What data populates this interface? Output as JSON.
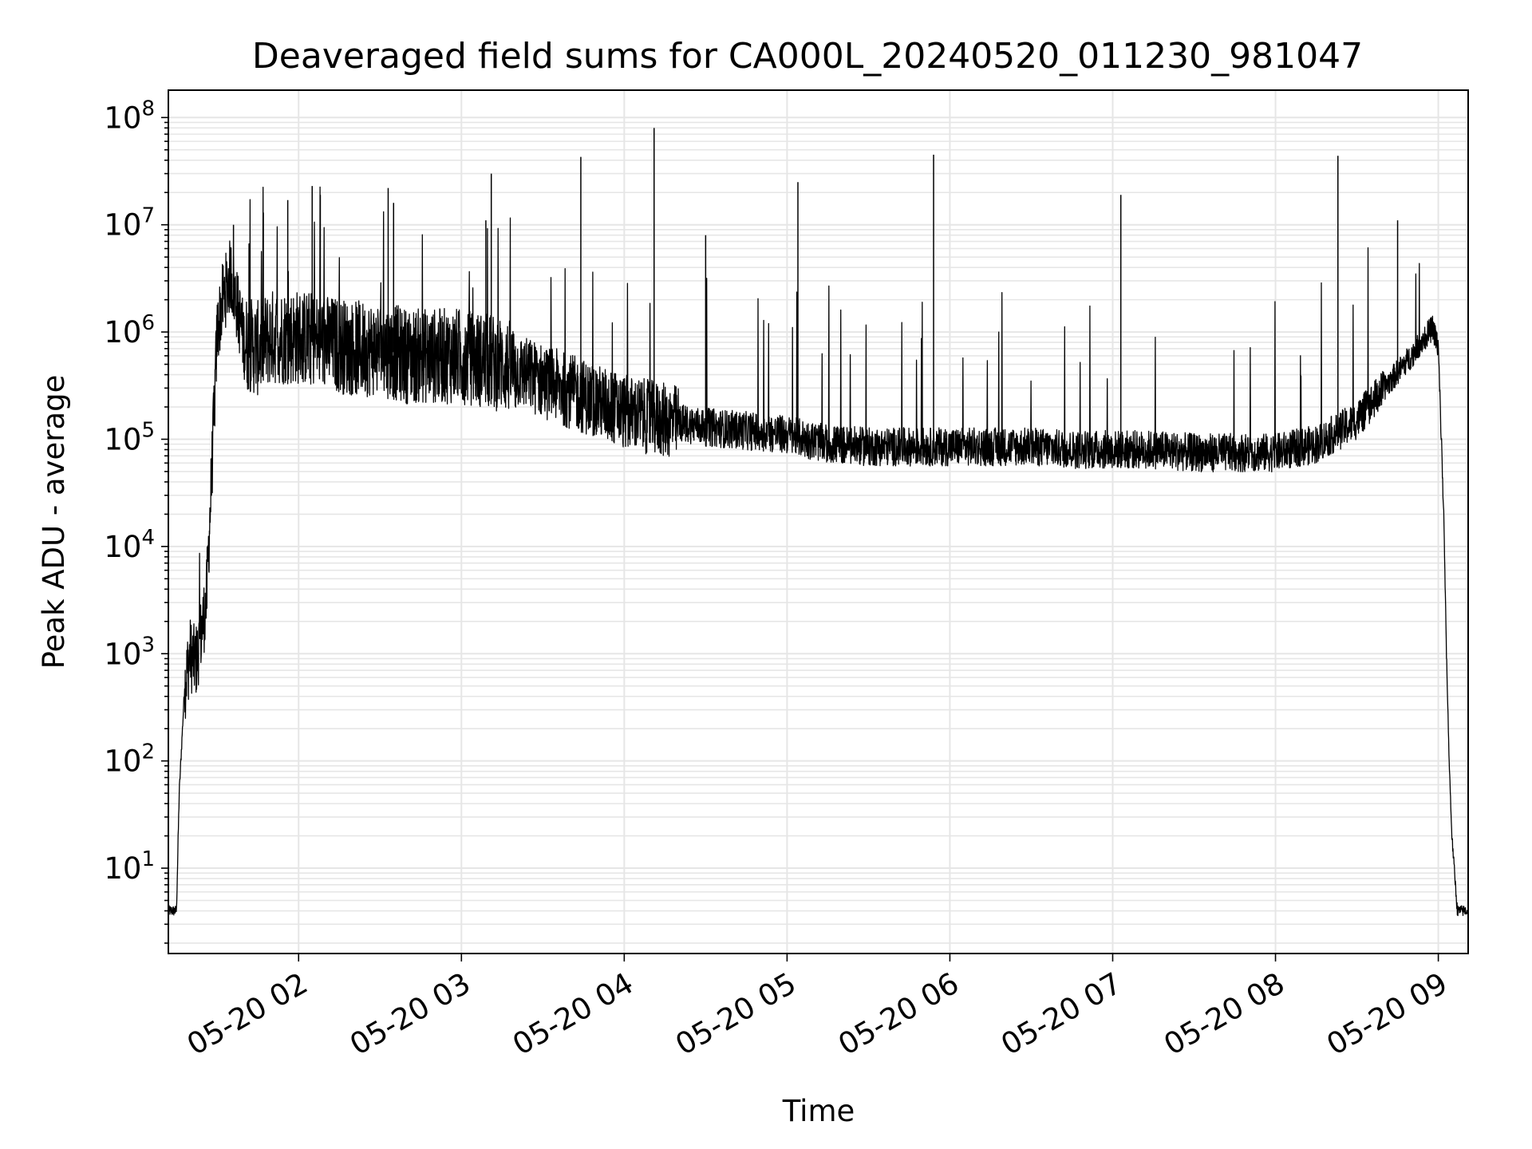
{
  "chart_data": {
    "type": "line",
    "title": "Deaveraged field sums for CA000L_20240520_011230_981047",
    "xlabel": "Time",
    "ylabel": "Peak ADU - average",
    "y_scale": "log",
    "ylim": [
      1.6,
      180000000
    ],
    "xlim": [
      "2024-05-20 01:12",
      "2024-05-20 09:11"
    ],
    "x_ticks": [
      "05-20 02",
      "05-20 03",
      "05-20 04",
      "05-20 05",
      "05-20 06",
      "05-20 07",
      "05-20 08",
      "05-20 09"
    ],
    "x_tick_times": [
      "2024-05-20 02:00",
      "2024-05-20 03:00",
      "2024-05-20 04:00",
      "2024-05-20 05:00",
      "2024-05-20 06:00",
      "2024-05-20 07:00",
      "2024-05-20 08:00",
      "2024-05-20 09:00"
    ],
    "y_ticks": [
      10,
      100,
      1000,
      10000,
      100000,
      1000000,
      10000000,
      100000000
    ],
    "y_tick_labels": [
      {
        "base": "10",
        "exp": "1"
      },
      {
        "base": "10",
        "exp": "2"
      },
      {
        "base": "10",
        "exp": "3"
      },
      {
        "base": "10",
        "exp": "4"
      },
      {
        "base": "10",
        "exp": "5"
      },
      {
        "base": "10",
        "exp": "6"
      },
      {
        "base": "10",
        "exp": "7"
      },
      {
        "base": "10",
        "exp": "8"
      }
    ],
    "grid": true,
    "grid_minor": true,
    "line_color": "#000000",
    "grid_color": "#e6e6e6",
    "series": [
      {
        "x": [
          "2024-05-20 01:12",
          "2024-05-20 01:14",
          "2024-05-20 01:15",
          "2024-05-20 01:16",
          "2024-05-20 01:18",
          "2024-05-20 01:20",
          "2024-05-20 01:22",
          "2024-05-20 01:24",
          "2024-05-20 01:26",
          "2024-05-20 01:28",
          "2024-05-20 01:30",
          "2024-05-20 01:32",
          "2024-05-20 01:35",
          "2024-05-20 01:40",
          "2024-05-20 01:45",
          "2024-05-20 01:50",
          "2024-05-20 02:00",
          "2024-05-20 02:10",
          "2024-05-20 02:20",
          "2024-05-20 02:30",
          "2024-05-20 02:40",
          "2024-05-20 02:50",
          "2024-05-20 03:00",
          "2024-05-20 03:15",
          "2024-05-20 03:30",
          "2024-05-20 03:45",
          "2024-05-20 04:00",
          "2024-05-20 04:15",
          "2024-05-20 04:30",
          "2024-05-20 04:45",
          "2024-05-20 05:00",
          "2024-05-20 05:15",
          "2024-05-20 05:30",
          "2024-05-20 05:45",
          "2024-05-20 06:00",
          "2024-05-20 06:15",
          "2024-05-20 06:30",
          "2024-05-20 06:45",
          "2024-05-20 07:00",
          "2024-05-20 07:15",
          "2024-05-20 07:30",
          "2024-05-20 07:45",
          "2024-05-20 08:00",
          "2024-05-20 08:15",
          "2024-05-20 08:30",
          "2024-05-20 08:40",
          "2024-05-20 08:50",
          "2024-05-20 08:55",
          "2024-05-20 08:58",
          "2024-05-20 09:00",
          "2024-05-20 09:02",
          "2024-05-20 09:03",
          "2024-05-20 09:04",
          "2024-05-20 09:05",
          "2024-05-20 09:07",
          "2024-05-20 09:11"
        ],
        "y": [
          4,
          4,
          4,
          50,
          500,
          1000,
          800,
          1500,
          3000,
          50000,
          1000000,
          2000000,
          3500000,
          800000,
          700000,
          900000,
          900000,
          800000,
          700000,
          700000,
          600000,
          600000,
          600000,
          500000,
          350000,
          250000,
          180000,
          150000,
          130000,
          120000,
          110000,
          90000,
          85000,
          85000,
          85000,
          85000,
          85000,
          80000,
          80000,
          80000,
          75000,
          75000,
          75000,
          90000,
          150000,
          300000,
          600000,
          900000,
          1100000,
          700000,
          20000,
          1000,
          100,
          20,
          4,
          4
        ]
      }
    ],
    "spikes": [
      {
        "x": "2024-05-20 01:36",
        "y": 10000000
      },
      {
        "x": "2024-05-20 01:47",
        "y": 13000000
      },
      {
        "x": "2024-05-20 01:56",
        "y": 17000000
      },
      {
        "x": "2024-05-20 02:05",
        "y": 23000000
      },
      {
        "x": "2024-05-20 02:08",
        "y": 19000000
      },
      {
        "x": "2024-05-20 02:33",
        "y": 22000000
      },
      {
        "x": "2024-05-20 02:35",
        "y": 16000000
      },
      {
        "x": "2024-05-20 03:09",
        "y": 11000000
      },
      {
        "x": "2024-05-20 03:11",
        "y": 30000000
      },
      {
        "x": "2024-05-20 03:44",
        "y": 43000000
      },
      {
        "x": "2024-05-20 04:11",
        "y": 80000000
      },
      {
        "x": "2024-05-20 04:30",
        "y": 8000000
      },
      {
        "x": "2024-05-20 05:04",
        "y": 25000000
      },
      {
        "x": "2024-05-20 05:54",
        "y": 45000000
      },
      {
        "x": "2024-05-20 07:03",
        "y": 19000000
      },
      {
        "x": "2024-05-20 08:23",
        "y": 44000000
      },
      {
        "x": "2024-05-20 08:45",
        "y": 11000000
      }
    ]
  }
}
